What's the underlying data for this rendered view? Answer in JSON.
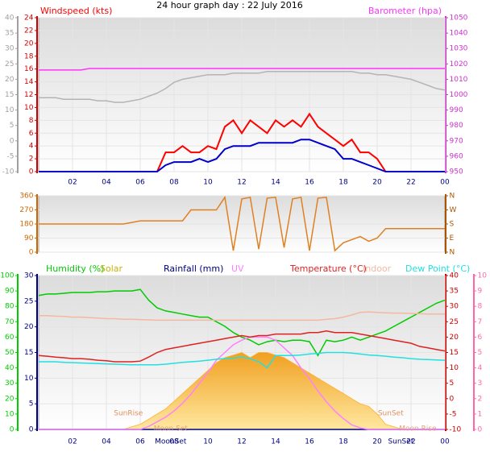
{
  "title": "24 hour graph day : 22 July 2016",
  "chart_data": [
    {
      "type": "line",
      "x": [
        0,
        0.5,
        1,
        1.5,
        2,
        2.5,
        3,
        3.5,
        4,
        4.5,
        5,
        5.5,
        6,
        6.5,
        7,
        7.5,
        8,
        8.5,
        9,
        9.5,
        10,
        10.5,
        11,
        11.5,
        12,
        12.5,
        13,
        13.5,
        14,
        14.5,
        15,
        15.5,
        16,
        16.5,
        17,
        17.5,
        18,
        18.5,
        19,
        19.5,
        20,
        20.5,
        21,
        21.5,
        22,
        22.5,
        23,
        23.5,
        24
      ],
      "xlim": [
        0,
        24
      ],
      "xticks": [
        {
          "value": 2,
          "label": "02"
        },
        {
          "value": 4,
          "label": "04"
        },
        {
          "value": 6,
          "label": "06"
        },
        {
          "value": 8,
          "label": "08"
        },
        10,
        12,
        14,
        16,
        18,
        20,
        22,
        {
          "value": 24,
          "label": "00"
        }
      ],
      "ylim": [
        0,
        24
      ],
      "yticks": [
        0,
        2,
        4,
        6,
        8,
        10,
        12,
        14,
        16,
        18,
        20,
        22,
        24
      ],
      "y2lim": [
        950,
        1050
      ],
      "y2ticks": [
        950,
        960,
        970,
        980,
        990,
        1000,
        1010,
        1020,
        1030,
        1040,
        1050
      ],
      "y3lim": [
        -10,
        40
      ],
      "y3ticks": [
        -10,
        -5,
        0,
        5,
        10,
        15,
        20,
        25,
        30,
        35,
        40
      ],
      "axis_colors": {
        "y": "#cc0000",
        "y2": "#cc33cc",
        "y3": "#a0a0a0"
      },
      "grid": true,
      "series": [
        {
          "name": "Windspeed (kts)",
          "color": "#ff0000",
          "axis": "y",
          "values": [
            0,
            0,
            0,
            0,
            0,
            0,
            0,
            0,
            0,
            0,
            0,
            0,
            0,
            0,
            0,
            3,
            3,
            4,
            3,
            3,
            4,
            3.5,
            7,
            8,
            6,
            8,
            7,
            6,
            8,
            7,
            8,
            7,
            9,
            7,
            6,
            5,
            4,
            5,
            3,
            3,
            2,
            0,
            0,
            0,
            0,
            0,
            0,
            0,
            0
          ]
        },
        {
          "color": "#0000cc",
          "axis": "y",
          "values": [
            0,
            0,
            0,
            0,
            0,
            0,
            0,
            0,
            0,
            0,
            0,
            0,
            0,
            0,
            0,
            1,
            1.5,
            1.5,
            1.5,
            2,
            1.5,
            2,
            3.5,
            4,
            4,
            4,
            4.5,
            4.5,
            4.5,
            4.5,
            4.5,
            5,
            5,
            4.5,
            4,
            3.5,
            2,
            2,
            1.5,
            1,
            0.5,
            0,
            0,
            0,
            0,
            0,
            0,
            0,
            0
          ]
        },
        {
          "name": "Barometer (hpa)",
          "color": "#ff33ff",
          "axis": "y2",
          "values": [
            1016,
            1016,
            1016,
            1016,
            1016,
            1016,
            1017,
            1017,
            1017,
            1017,
            1017,
            1017,
            1017,
            1017,
            1017,
            1017,
            1017,
            1017,
            1017,
            1017,
            1017,
            1017,
            1017,
            1017,
            1017,
            1017,
            1017,
            1017,
            1017,
            1017,
            1017,
            1017,
            1017,
            1017,
            1017,
            1017,
            1017,
            1017,
            1017,
            1017,
            1017,
            1017,
            1017,
            1017,
            1017,
            1017,
            1017,
            1017,
            1017
          ]
        },
        {
          "color": "#b4b4b4",
          "axis": "y3",
          "values": [
            14,
            14,
            14,
            13.5,
            13.5,
            13.5,
            13.5,
            13,
            13,
            12.5,
            12.5,
            13,
            13.5,
            14.5,
            15.5,
            17,
            19,
            20,
            20.5,
            21,
            21.5,
            21.5,
            21.5,
            22,
            22,
            22,
            22,
            22.5,
            22.5,
            22.5,
            22.5,
            22.5,
            22.5,
            22.5,
            22.5,
            22.5,
            22.5,
            22.5,
            22,
            22,
            21.5,
            21.5,
            21,
            20.5,
            20,
            19,
            18,
            17,
            16.5
          ]
        }
      ]
    },
    {
      "type": "line",
      "x": [
        0,
        0.5,
        1,
        1.5,
        2,
        2.5,
        3,
        3.5,
        4,
        4.5,
        5,
        5.5,
        6,
        6.5,
        7,
        7.5,
        8,
        8.5,
        9,
        9.5,
        10,
        10.5,
        11,
        11.5,
        12,
        12.5,
        13,
        13.5,
        14,
        14.5,
        15,
        15.5,
        16,
        16.5,
        17,
        17.5,
        18,
        18.5,
        19,
        19.5,
        20,
        20.5,
        21,
        21.5,
        22,
        22.5,
        23,
        23.5,
        24
      ],
      "xlim": [
        0,
        24
      ],
      "ylim": [
        0,
        360
      ],
      "yticks": [
        0,
        90,
        180,
        270,
        360
      ],
      "y2lim": [
        0,
        360
      ],
      "y2ticks": [
        {
          "value": 0,
          "label": "N"
        },
        {
          "value": 90,
          "label": "E"
        },
        {
          "value": 180,
          "label": "S"
        },
        {
          "value": 270,
          "label": "W"
        },
        {
          "value": 360,
          "label": "N"
        }
      ],
      "axis_colors": {
        "y": "#cc6600",
        "y2": "#aa5500"
      },
      "grid": true,
      "series": [
        {
          "color": "#e08020",
          "axis": "y",
          "values": [
            180,
            180,
            180,
            180,
            180,
            180,
            180,
            180,
            180,
            180,
            180,
            190,
            200,
            200,
            200,
            200,
            200,
            200,
            270,
            270,
            270,
            270,
            350,
            10,
            340,
            350,
            20,
            345,
            350,
            30,
            340,
            350,
            10,
            345,
            350,
            10,
            60,
            80,
            100,
            70,
            90,
            150,
            150,
            150,
            150,
            150,
            150,
            150,
            150
          ]
        }
      ]
    },
    {
      "type": "line",
      "x": [
        0,
        0.5,
        1,
        1.5,
        2,
        2.5,
        3,
        3.5,
        4,
        4.5,
        5,
        5.5,
        6,
        6.5,
        7,
        7.5,
        8,
        8.5,
        9,
        9.5,
        10,
        10.5,
        11,
        11.5,
        12,
        12.5,
        13,
        13.5,
        14,
        14.5,
        15,
        15.5,
        16,
        16.5,
        17,
        17.5,
        18,
        18.5,
        19,
        19.5,
        20,
        20.5,
        21,
        21.5,
        22,
        22.5,
        23,
        23.5,
        24
      ],
      "xlim": [
        0,
        24
      ],
      "xticks": [
        {
          "value": 2,
          "label": "02"
        },
        {
          "value": 4,
          "label": "04"
        },
        {
          "value": 6,
          "label": "06"
        },
        {
          "value": 8,
          "label": "08"
        },
        10,
        12,
        14,
        16,
        18,
        20,
        22,
        {
          "value": 24,
          "label": "00"
        }
      ],
      "ylim": [
        0,
        30
      ],
      "yticks": [
        0,
        5,
        10,
        15,
        20,
        25,
        30
      ],
      "y2lim": [
        -10,
        40
      ],
      "y2ticks": [
        -10,
        -5,
        0,
        5,
        10,
        15,
        20,
        25,
        30,
        35,
        40
      ],
      "y3lim": [
        0,
        100
      ],
      "y3ticks": [
        0,
        10,
        20,
        30,
        40,
        50,
        60,
        70,
        80,
        90,
        100
      ],
      "y4lim": [
        0,
        10
      ],
      "y4ticks": [
        0,
        1,
        2,
        3,
        4,
        5,
        6,
        7,
        8,
        9,
        10
      ],
      "axis_colors": {
        "y": "#000080",
        "y2": "#cc0000",
        "y3": "#00cc00",
        "y4": "#ff66aa"
      },
      "grid": true,
      "annotations": [
        {
          "text": "SunRise",
          "x": 5.3
        },
        {
          "text": "SunSet",
          "x": 20.8
        },
        {
          "text": "Moon Set",
          "x": 7.8
        },
        {
          "text": "Moon Rise",
          "x": 22.4
        },
        {
          "text": "MoonSet",
          "x": 7.8
        },
        {
          "text": "SunSet",
          "x": 21.4
        }
      ],
      "series": [
        {
          "name": "Humidity (%)",
          "color": "#00cc00",
          "axis": "y3",
          "values": [
            87,
            88,
            88,
            88.5,
            89,
            89,
            89,
            89.5,
            89.5,
            90,
            90,
            90,
            91,
            84,
            79,
            77,
            76,
            75,
            74,
            73,
            73,
            70,
            67,
            63,
            60,
            58,
            55,
            57,
            58,
            57,
            58,
            58,
            57,
            48,
            58,
            57,
            58,
            60,
            58,
            60,
            62,
            64,
            67,
            70,
            73,
            76,
            79,
            82,
            84
          ]
        },
        {
          "name": "Solar",
          "color": "#c8b400",
          "fill": "#ffb030",
          "axis": "y",
          "area": true,
          "values": [
            0,
            0,
            0,
            0,
            0,
            0,
            0,
            0,
            0,
            0,
            0,
            0.5,
            1,
            2,
            3,
            4,
            5.5,
            7,
            8.5,
            10,
            11.5,
            13,
            14,
            14.5,
            15,
            14,
            15,
            15,
            14.5,
            14,
            13,
            12,
            11,
            10,
            9,
            8,
            7,
            6,
            5,
            4.5,
            3,
            1,
            0.5,
            0,
            0,
            0,
            0,
            0,
            0
          ]
        },
        {
          "name": "Rainfall (mm)",
          "color": "#000080",
          "axis": "y",
          "values": [
            0,
            0,
            0,
            0,
            0,
            0,
            0,
            0,
            0,
            0,
            0,
            0,
            0,
            0,
            0,
            0,
            0,
            0,
            0,
            0,
            0,
            0,
            0,
            0,
            0,
            0,
            0,
            0,
            0,
            0,
            0,
            0,
            0,
            0,
            0,
            0,
            0,
            0,
            0,
            0,
            0,
            0,
            0,
            0,
            0,
            0,
            0,
            0,
            0
          ]
        },
        {
          "name": "UV",
          "color": "#ff80ff",
          "axis": "y4",
          "values": [
            0,
            0,
            0,
            0,
            0,
            0,
            0,
            0,
            0,
            0,
            0,
            0,
            0,
            0.2,
            0.5,
            0.8,
            1.2,
            1.7,
            2.3,
            3,
            3.7,
            4.5,
            5,
            5.5,
            5.8,
            6,
            6,
            6,
            5.8,
            5.3,
            4.8,
            4,
            3.3,
            2.5,
            1.8,
            1.2,
            0.7,
            0.3,
            0.1,
            0,
            0,
            0,
            0,
            0,
            0,
            0,
            0,
            0,
            0
          ]
        },
        {
          "name": "Temperature (°C)",
          "color": "#dd2222",
          "axis": "y2",
          "values": [
            14,
            13.8,
            13.5,
            13.3,
            13,
            13,
            12.8,
            12.5,
            12.3,
            12,
            12,
            12,
            12.2,
            13.5,
            15,
            16,
            16.5,
            17,
            17.5,
            18,
            18.5,
            19,
            19.5,
            20,
            20.5,
            20,
            20.5,
            20.5,
            21,
            21,
            21,
            21,
            21.5,
            21.5,
            22,
            21.5,
            21.5,
            21.5,
            21,
            20.5,
            20,
            19.5,
            19,
            18.5,
            18,
            17,
            16.5,
            16,
            15.5
          ]
        },
        {
          "name": "Indoor",
          "color": "#f4b8a0",
          "axis": "y2",
          "values": [
            27,
            27,
            26.8,
            26.7,
            26.5,
            26.5,
            26.3,
            26.2,
            26,
            26,
            25.8,
            25.8,
            25.7,
            25.6,
            25.5,
            25.5,
            25.5,
            25.5,
            25.5,
            25.5,
            25.5,
            25.5,
            25.5,
            25.5,
            25.5,
            25.5,
            25.5,
            25.5,
            25.5,
            25.5,
            25.5,
            25.5,
            25.5,
            25.5,
            25.8,
            26,
            26.5,
            27.2,
            28,
            28.2,
            28,
            27.9,
            27.8,
            27.8,
            27.7,
            27.6,
            27.5,
            27.5,
            27.5
          ]
        },
        {
          "name": "Dew Point (°C)",
          "color": "#22e0e0",
          "axis": "y2",
          "values": [
            12,
            12,
            12,
            11.8,
            11.7,
            11.6,
            11.5,
            11.4,
            11.3,
            11.2,
            11.1,
            11,
            11,
            11,
            11,
            11.2,
            11.5,
            11.8,
            12,
            12.2,
            12.5,
            12.8,
            13,
            13.2,
            13.5,
            13,
            12,
            10,
            14,
            14,
            14,
            14.2,
            14.5,
            14.7,
            15,
            15,
            15,
            14.8,
            14.5,
            14.2,
            14,
            13.8,
            13.5,
            13.3,
            13,
            12.8,
            12.7,
            12.6,
            12.5
          ]
        }
      ]
    }
  ]
}
